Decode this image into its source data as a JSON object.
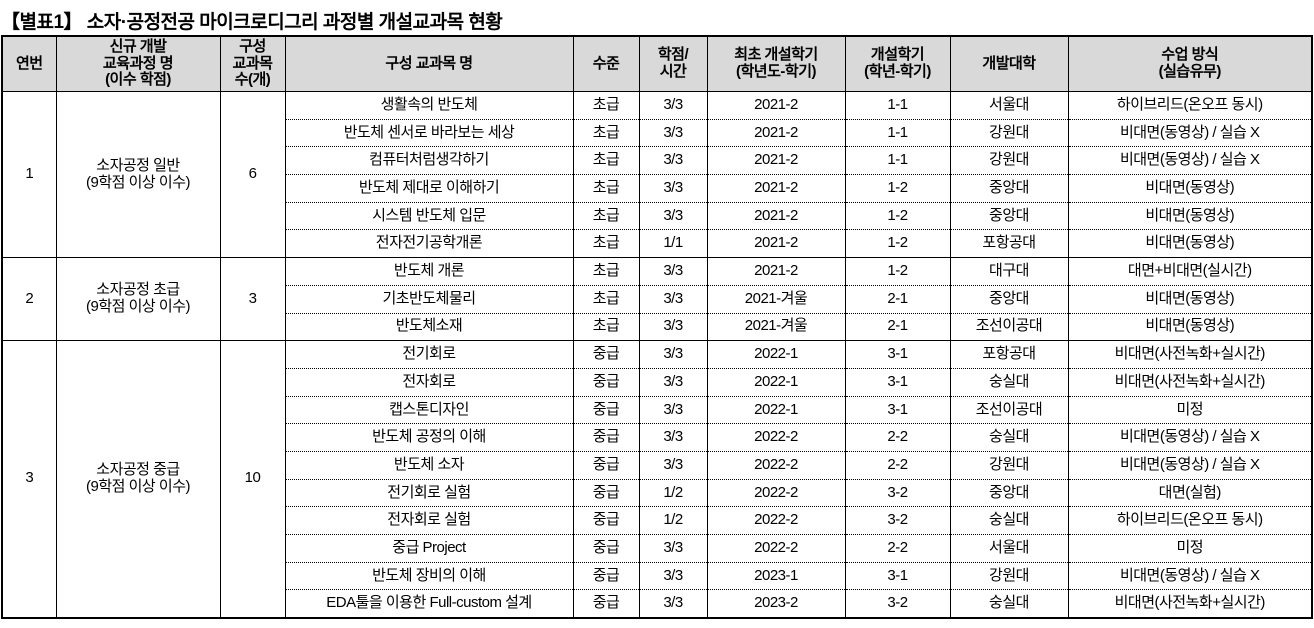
{
  "title": "【별표1】 소자·공정전공 마이크로디그리 과정별 개설교과목 현황",
  "colors": {
    "header_bg": "#d9d9d9",
    "border": "#000000",
    "text": "#000000",
    "page_bg": "#ffffff"
  },
  "table": {
    "headers": [
      "연번",
      "신규 개발\n교육과정 명\n(이수 학점)",
      "구성\n교과목\n수(개)",
      "구성 교과목 명",
      "수준",
      "학점/\n시간",
      "최초 개설학기\n(학년도-학기)",
      "개설학기\n(학년-학기)",
      "개발대학",
      "수업 방식\n(실습유무)"
    ],
    "column_keys": [
      "serial-number",
      "program-name",
      "course-count",
      "course-name",
      "level",
      "credit-hours",
      "first-open-semester",
      "open-semester",
      "university",
      "class-method"
    ],
    "groups": [
      {
        "no": "1",
        "program": "소자공정 일반\n(9학점 이상 이수)",
        "course_count": "6",
        "courses": [
          [
            "생활속의 반도체",
            "초급",
            "3/3",
            "2021-2",
            "1-1",
            "서울대",
            "하이브리드(온오프 동시)"
          ],
          [
            "반도체 센서로 바라보는 세상",
            "초급",
            "3/3",
            "2021-2",
            "1-1",
            "강원대",
            "비대면(동영상) / 실습 X"
          ],
          [
            "컴퓨터처럼생각하기",
            "초급",
            "3/3",
            "2021-2",
            "1-1",
            "강원대",
            "비대면(동영상) / 실습 X"
          ],
          [
            "반도체 제대로 이해하기",
            "초급",
            "3/3",
            "2021-2",
            "1-2",
            "중앙대",
            "비대면(동영상)"
          ],
          [
            "시스템 반도체 입문",
            "초급",
            "3/3",
            "2021-2",
            "1-2",
            "중앙대",
            "비대면(동영상)"
          ],
          [
            "전자전기공학개론",
            "초급",
            "1/1",
            "2021-2",
            "1-2",
            "포항공대",
            "비대면(동영상)"
          ]
        ]
      },
      {
        "no": "2",
        "program": "소자공정 초급\n(9학점 이상 이수)",
        "course_count": "3",
        "courses": [
          [
            "반도체 개론",
            "초급",
            "3/3",
            "2021-2",
            "1-2",
            "대구대",
            "대면+비대면(실시간)"
          ],
          [
            "기초반도체물리",
            "초급",
            "3/3",
            "2021-겨울",
            "2-1",
            "중앙대",
            "비대면(동영상)"
          ],
          [
            "반도체소재",
            "초급",
            "3/3",
            "2021-겨울",
            "2-1",
            "조선이공대",
            "비대면(동영상)"
          ]
        ]
      },
      {
        "no": "3",
        "program": "소자공정 중급\n(9학점 이상 이수)",
        "course_count": "10",
        "courses": [
          [
            "전기회로",
            "중급",
            "3/3",
            "2022-1",
            "3-1",
            "포항공대",
            "비대면(사전녹화+실시간)"
          ],
          [
            "전자회로",
            "중급",
            "3/3",
            "2022-1",
            "3-1",
            "숭실대",
            "비대면(사전녹화+실시간)"
          ],
          [
            "캡스톤디자인",
            "중급",
            "3/3",
            "2022-1",
            "3-1",
            "조선이공대",
            "미정"
          ],
          [
            "반도체 공정의 이해",
            "중급",
            "3/3",
            "2022-2",
            "2-2",
            "숭실대",
            "비대면(동영상) / 실습 X"
          ],
          [
            "반도체 소자",
            "중급",
            "3/3",
            "2022-2",
            "2-2",
            "강원대",
            "비대면(동영상) / 실습 X"
          ],
          [
            "전기회로 실험",
            "중급",
            "1/2",
            "2022-2",
            "3-2",
            "중앙대",
            "대면(실험)"
          ],
          [
            "전자회로 실험",
            "중급",
            "1/2",
            "2022-2",
            "3-2",
            "숭실대",
            "하이브리드(온오프 동시)"
          ],
          [
            "중급 Project",
            "중급",
            "3/3",
            "2022-2",
            "2-2",
            "서울대",
            "미정"
          ],
          [
            "반도체 장비의 이해",
            "중급",
            "3/3",
            "2023-1",
            "3-1",
            "강원대",
            "비대면(동영상) / 실습 X"
          ],
          [
            "EDA툴을 이용한 Full-custom 설계",
            "중급",
            "3/3",
            "2023-2",
            "3-2",
            "숭실대",
            "비대면(사전녹화+실시간)"
          ]
        ]
      }
    ]
  }
}
